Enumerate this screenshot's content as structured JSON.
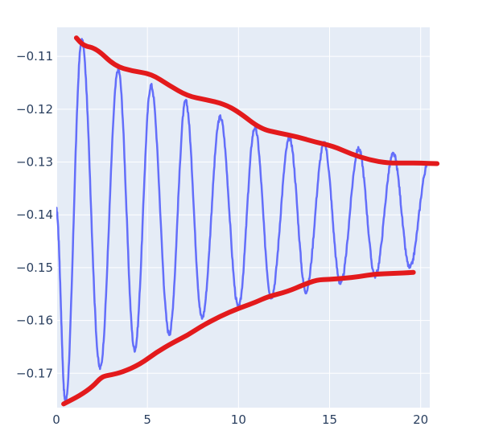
{
  "chart_data": {
    "type": "line",
    "title": "",
    "xlabel": "",
    "ylabel": "",
    "xlim": [
      0,
      20.5
    ],
    "ylim": [
      -0.1765,
      -0.1045
    ],
    "x_ticks": [
      0,
      5,
      10,
      15,
      20
    ],
    "x_tick_labels": [
      "0",
      "5",
      "10",
      "15",
      "20"
    ],
    "y_ticks": [
      -0.11,
      -0.12,
      -0.13,
      -0.14,
      -0.15,
      -0.16,
      -0.17
    ],
    "y_tick_labels": [
      "−0.11",
      "−0.12",
      "−0.13",
      "−0.14",
      "−0.15",
      "−0.16",
      "−0.17"
    ],
    "grid": true,
    "background_color": "#e5ecf6",
    "grid_color": "#ffffff",
    "series": [
      {
        "color": "#636efa",
        "style": "damped-oscillation",
        "x": [
          0,
          0.5,
          1.4,
          2.4,
          3.4,
          4.3,
          5.2,
          6.2,
          7.1,
          8.0,
          9.0,
          10.0,
          10.9,
          11.8,
          12.8,
          13.7,
          14.7,
          15.6,
          16.6,
          17.5,
          18.5,
          19.4,
          20.4
        ],
        "y": [
          -0.139,
          -0.1755,
          -0.107,
          -0.169,
          -0.1125,
          -0.1655,
          -0.1155,
          -0.1625,
          -0.1185,
          -0.1595,
          -0.1215,
          -0.1575,
          -0.1235,
          -0.1555,
          -0.1255,
          -0.1545,
          -0.1265,
          -0.153,
          -0.1275,
          -0.1515,
          -0.1285,
          -0.15,
          -0.1305
        ]
      },
      {
        "color": "#e31a1c",
        "style": "upper-envelope",
        "x": [
          1.1,
          1.5,
          2.2,
          3.2,
          4.2,
          5.2,
          6.2,
          7.2,
          8.2,
          9.2,
          10.0,
          11.2,
          12.2,
          13.2,
          14.2,
          15.2,
          16.2,
          17.2,
          18.2,
          19.2,
          20.0,
          20.9
        ],
        "y": [
          -0.1065,
          -0.108,
          -0.1085,
          -0.1118,
          -0.1128,
          -0.1133,
          -0.1155,
          -0.1175,
          -0.1182,
          -0.119,
          -0.1205,
          -0.1237,
          -0.1245,
          -0.1252,
          -0.1262,
          -0.127,
          -0.1285,
          -0.1296,
          -0.1302,
          -0.1302,
          -0.1302,
          -0.1303
        ]
      },
      {
        "color": "#e31a1c",
        "style": "lower-envelope",
        "x": [
          0.4,
          1.3,
          2.0,
          2.5,
          3.0,
          3.6,
          4.6,
          5.5,
          6.4,
          7.2,
          8.0,
          9.0,
          10.0,
          10.9,
          11.6,
          12.7,
          13.6,
          14.3,
          15.0,
          15.8,
          16.6,
          17.5,
          18.5,
          19.6
        ],
        "y": [
          -0.1758,
          -0.1742,
          -0.1725,
          -0.1706,
          -0.1703,
          -0.1698,
          -0.1683,
          -0.166,
          -0.1642,
          -0.1628,
          -0.161,
          -0.1592,
          -0.1577,
          -0.1566,
          -0.1555,
          -0.1545,
          -0.1532,
          -0.1523,
          -0.1522,
          -0.152,
          -0.1517,
          -0.1512,
          -0.1511,
          -0.1509
        ]
      }
    ]
  }
}
